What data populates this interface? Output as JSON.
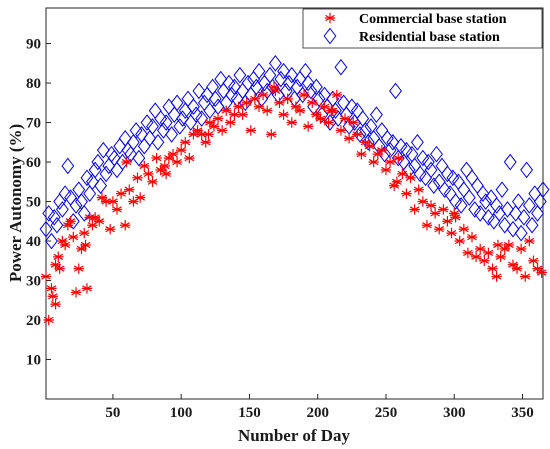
{
  "chart_data": {
    "type": "scatter",
    "title": "",
    "xlabel": "Number of Day",
    "ylabel": "Power Autonomy (%)",
    "xlim": [
      1,
      365
    ],
    "ylim": [
      0,
      99
    ],
    "xticks": [
      50,
      100,
      150,
      200,
      250,
      300,
      350
    ],
    "yticks": [
      10,
      20,
      30,
      40,
      50,
      60,
      70,
      80,
      90
    ],
    "grid": false,
    "legend_position": "top-right",
    "series": [
      {
        "name": "Commercial base station",
        "marker": "asterisk",
        "color": "#ff0000",
        "x": [
          1,
          3,
          5,
          6,
          8,
          10,
          11,
          13,
          15,
          17,
          19,
          21,
          23,
          25,
          27,
          29,
          31,
          33,
          35,
          37,
          40,
          42,
          45,
          48,
          50,
          53,
          56,
          59,
          62,
          65,
          68,
          70,
          73,
          76,
          79,
          82,
          85,
          88,
          91,
          94,
          97,
          100,
          103,
          106,
          109,
          112,
          115,
          118,
          121,
          124,
          127,
          130,
          133,
          136,
          139,
          142,
          145,
          148,
          151,
          154,
          157,
          160,
          163,
          166,
          169,
          172,
          175,
          178,
          181,
          184,
          187,
          190,
          193,
          196,
          199,
          202,
          205,
          208,
          211,
          214,
          217,
          220,
          223,
          226,
          229,
          232,
          235,
          238,
          241,
          244,
          247,
          250,
          253,
          256,
          259,
          262,
          265,
          268,
          271,
          274,
          277,
          280,
          283,
          286,
          289,
          292,
          295,
          298,
          301,
          304,
          307,
          310,
          313,
          316,
          319,
          322,
          325,
          328,
          331,
          334,
          337,
          340,
          343,
          346,
          349,
          352,
          355,
          358,
          361,
          364,
          8,
          30,
          60,
          89,
          120,
          168,
          210,
          258,
          300,
          332
        ],
        "y": [
          31,
          20,
          28,
          26,
          34,
          36,
          33,
          40,
          39,
          44,
          45,
          41,
          27,
          33,
          38,
          42,
          28,
          46,
          44,
          46,
          45,
          51,
          50,
          43,
          50,
          48,
          52,
          44,
          53,
          50,
          56,
          51,
          59,
          57,
          55,
          61,
          58,
          59,
          61,
          62,
          60,
          63,
          65,
          61,
          67,
          68,
          67,
          65,
          70,
          69,
          71,
          68,
          73,
          70,
          72,
          74,
          72,
          75,
          68,
          76,
          74,
          77,
          73,
          67,
          78,
          75,
          72,
          76,
          70,
          74,
          73,
          77,
          69,
          75,
          72,
          71,
          74,
          70,
          73,
          77,
          68,
          71,
          66,
          70,
          67,
          62,
          65,
          64,
          60,
          62,
          63,
          58,
          60,
          54,
          61,
          57,
          52,
          56,
          48,
          53,
          50,
          44,
          49,
          47,
          43,
          48,
          45,
          42,
          46,
          40,
          43,
          37,
          41,
          36,
          38,
          35,
          37,
          33,
          31,
          36,
          38,
          39,
          34,
          33,
          38,
          31,
          40,
          35,
          33,
          32,
          24,
          39,
          60,
          57,
          67,
          79,
          73,
          55,
          47,
          39
        ]
      },
      {
        "name": "Residential base station",
        "marker": "diamond",
        "color": "#0000ff",
        "x": [
          1,
          3,
          5,
          7,
          9,
          11,
          13,
          15,
          17,
          19,
          21,
          23,
          25,
          27,
          29,
          31,
          33,
          35,
          37,
          39,
          41,
          43,
          45,
          47,
          49,
          51,
          53,
          55,
          57,
          59,
          61,
          63,
          65,
          67,
          69,
          71,
          73,
          75,
          77,
          79,
          81,
          83,
          85,
          87,
          89,
          91,
          93,
          95,
          97,
          99,
          101,
          103,
          105,
          107,
          109,
          111,
          113,
          115,
          117,
          119,
          121,
          123,
          125,
          127,
          129,
          131,
          133,
          135,
          137,
          139,
          141,
          143,
          145,
          147,
          149,
          151,
          153,
          155,
          157,
          159,
          161,
          163,
          165,
          167,
          169,
          171,
          173,
          175,
          177,
          179,
          181,
          183,
          185,
          187,
          189,
          191,
          193,
          195,
          197,
          199,
          201,
          203,
          205,
          207,
          209,
          211,
          213,
          215,
          217,
          219,
          221,
          223,
          225,
          227,
          229,
          231,
          233,
          235,
          237,
          239,
          241,
          243,
          245,
          247,
          249,
          251,
          253,
          255,
          257,
          259,
          261,
          263,
          265,
          267,
          269,
          271,
          273,
          275,
          277,
          279,
          281,
          283,
          285,
          287,
          289,
          291,
          293,
          295,
          297,
          299,
          301,
          303,
          305,
          307,
          309,
          311,
          313,
          315,
          317,
          319,
          321,
          323,
          325,
          327,
          329,
          331,
          333,
          335,
          337,
          339,
          341,
          343,
          345,
          347,
          349,
          351,
          353,
          355,
          357,
          359,
          361,
          363,
          365
        ],
        "y": [
          43,
          47,
          40,
          46,
          44,
          50,
          48,
          52,
          59,
          51,
          45,
          49,
          53,
          50,
          47,
          56,
          52,
          55,
          58,
          60,
          54,
          63,
          57,
          59,
          62,
          61,
          58,
          64,
          60,
          66,
          63,
          62,
          65,
          68,
          61,
          67,
          64,
          70,
          66,
          69,
          73,
          65,
          71,
          68,
          70,
          74,
          67,
          72,
          75,
          69,
          71,
          73,
          76,
          70,
          74,
          72,
          78,
          71,
          75,
          77,
          73,
          79,
          76,
          74,
          81,
          78,
          75,
          80,
          77,
          79,
          76,
          82,
          78,
          75,
          80,
          77,
          81,
          79,
          83,
          76,
          80,
          78,
          82,
          79,
          85,
          77,
          81,
          83,
          78,
          80,
          82,
          76,
          79,
          81,
          77,
          83,
          80,
          78,
          74,
          79,
          76,
          72,
          77,
          74,
          70,
          76,
          73,
          71,
          84,
          75,
          72,
          69,
          74,
          70,
          73,
          67,
          71,
          68,
          65,
          69,
          66,
          72,
          64,
          68,
          62,
          66,
          63,
          65,
          78,
          61,
          64,
          60,
          63,
          58,
          62,
          59,
          65,
          57,
          61,
          56,
          60,
          58,
          54,
          62,
          55,
          59,
          53,
          57,
          52,
          56,
          50,
          55,
          49,
          53,
          58,
          51,
          56,
          48,
          54,
          47,
          52,
          50,
          46,
          51,
          45,
          49,
          47,
          53,
          44,
          48,
          60,
          43,
          47,
          50,
          42,
          46,
          58,
          49,
          44,
          52,
          47,
          50,
          53
        ]
      }
    ]
  }
}
